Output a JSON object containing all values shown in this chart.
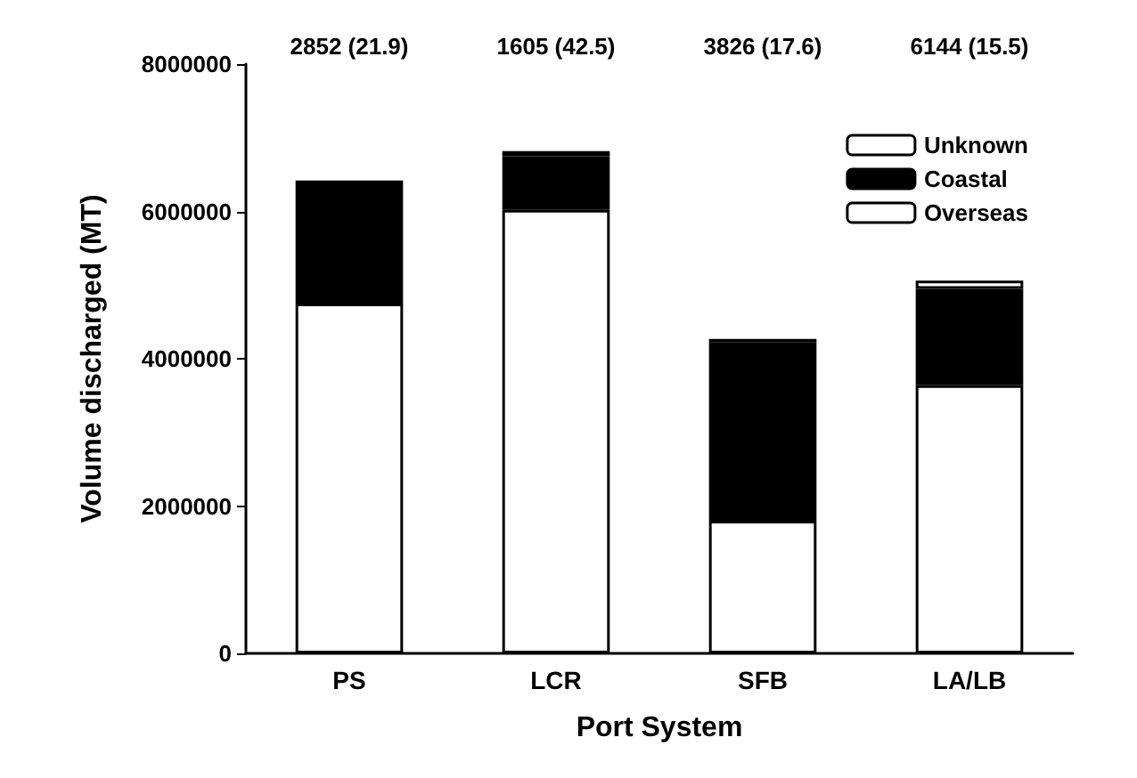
{
  "chart_data": {
    "type": "bar",
    "stacked": true,
    "xlabel": "Port System",
    "ylabel": "Volume discharged (MT)",
    "categories": [
      "PS",
      "LCR",
      "SFB",
      "LA/LB"
    ],
    "series": [
      {
        "name": "Overseas",
        "color": "#ffffff",
        "values": [
          4750000,
          6020000,
          1800000,
          3640000
        ]
      },
      {
        "name": "Coastal",
        "color": "#000000",
        "values": [
          1630000,
          730000,
          2420000,
          1310000
        ]
      },
      {
        "name": "Unknown",
        "color": "#ffffff",
        "values": [
          40000,
          70000,
          50000,
          110000
        ]
      }
    ],
    "ylim": [
      0,
      8000000
    ],
    "yticks": [
      0,
      2000000,
      4000000,
      6000000,
      8000000
    ],
    "grid": false,
    "legend": "top right",
    "annotations": [
      "2852 (21.9)",
      "1605 (42.5)",
      "3826 (17.6)",
      "6144 (15.5)"
    ]
  }
}
